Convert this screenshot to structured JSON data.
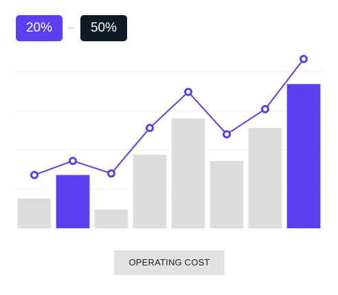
{
  "range_filter": {
    "from_label": "20%",
    "to_label": "50%",
    "separator": "–"
  },
  "caption": "OPERATING COST",
  "colors": {
    "accent": "#5b3ff0",
    "bar_default": "#dddddd",
    "badge_dark": "#0d1b26",
    "grid": "#eeeeee"
  },
  "chart_data": {
    "type": "bar",
    "title": "",
    "xlabel": "OPERATING COST",
    "ylabel": "",
    "ylim": [
      0,
      100
    ],
    "grid": true,
    "legend": "none",
    "categories": [
      "",
      "",
      "",
      "",
      "",
      "",
      "",
      ""
    ],
    "series": [
      {
        "kind": "bar",
        "values": [
          19,
          34,
          12,
          47,
          70,
          43,
          64,
          92
        ],
        "highlighted": [
          false,
          true,
          false,
          false,
          false,
          false,
          false,
          true
        ]
      },
      {
        "kind": "line",
        "values": [
          34,
          43,
          35,
          64,
          87,
          60,
          76,
          108
        ]
      }
    ]
  }
}
